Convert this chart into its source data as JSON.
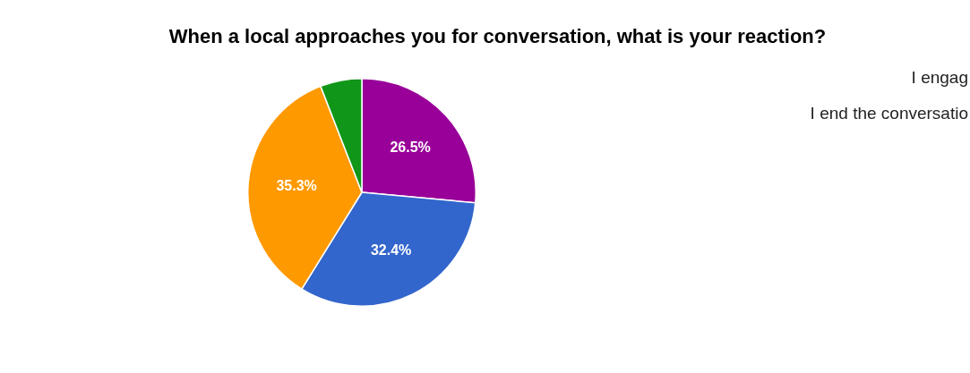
{
  "chart_data": {
    "type": "pie",
    "title": "When a local approaches you for conversation, what is your reaction?",
    "categories": [
      null,
      null,
      null,
      null
    ],
    "values": [
      26.5,
      32.4,
      35.3,
      5.9
    ],
    "colors": [
      "#990099",
      "#3366cc",
      "#ff9900",
      "#109618"
    ],
    "value_labels": [
      "26.5%",
      "32.4%",
      "35.3%",
      null
    ],
    "annotations": [
      "I engag",
      "I end the conversatio"
    ],
    "legend": false
  }
}
